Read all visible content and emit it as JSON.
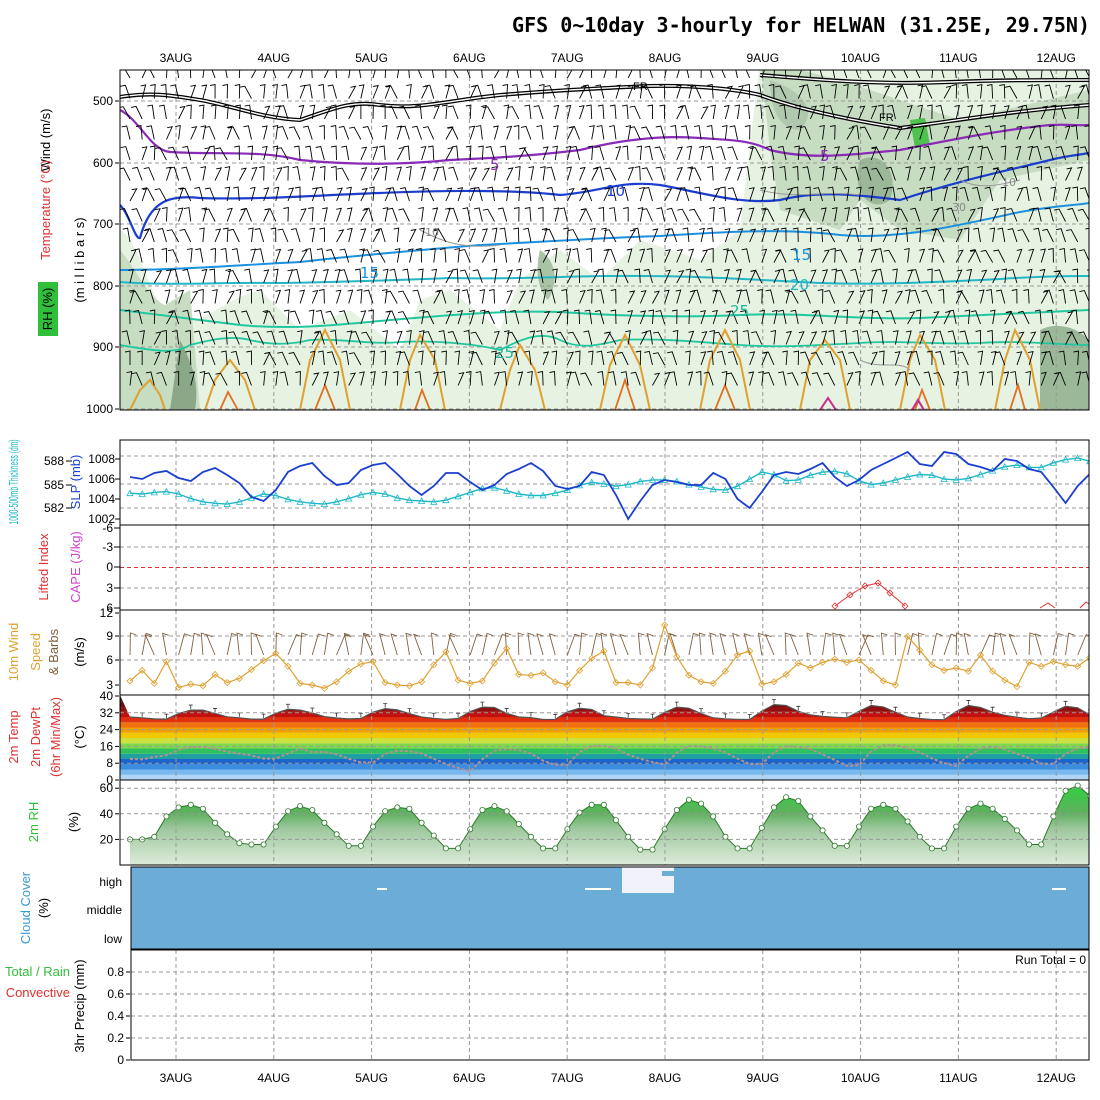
{
  "title": "GFS 0~10day 3-hourly for HELWAN (31.25E, 29.75N)",
  "date_labels": [
    "3AUG",
    "4AUG",
    "5AUG",
    "6AUG",
    "7AUG",
    "8AUG",
    "9AUG",
    "10AUG",
    "11AUG",
    "12AUG"
  ],
  "colors": {
    "rh_green": "#2fbf3a",
    "temp_red": "#e03030",
    "wind_black": "#000000",
    "slp_blue": "#1a3fd0",
    "thk_cyan": "#20b8c8",
    "li_red": "#e03030",
    "cape_magenta": "#cc44cc",
    "wind10_orange": "#e0a030",
    "barb_brown": "#806040",
    "rh2m_green": "#2fbf3a",
    "cloud_blue": "#6badd6",
    "cloud_label": "#3a9ad0",
    "precip_green": "#2fbf3a",
    "precip_red": "#e03030"
  },
  "panels": {
    "upper": {
      "label_wind": "Wind (m/s)",
      "label_temp": "Temperature (°C)",
      "label_rh": "RH (%)",
      "label_mb": "(m i l l i b a r s)",
      "yticks": [
        "500",
        "600",
        "700",
        "800",
        "900",
        "1000"
      ],
      "fr_label": "FR",
      "contour_labels": [
        "5",
        "5",
        "10",
        "15",
        "15",
        "20",
        "25",
        "25",
        "10",
        "30",
        "10"
      ]
    },
    "slp": {
      "label_thk": "1000-500mb Thickness (dm)",
      "label_slp": "SLP (mb)",
      "thk_ticks": [
        "588",
        "585",
        "582"
      ],
      "slp_ticks": [
        "1008",
        "1006",
        "1004",
        "1002"
      ]
    },
    "li": {
      "label_li": "Lifted Index",
      "label_cape": "CAPE (J/kg)",
      "li_ticks": [
        "-6",
        "-3",
        "0",
        "3",
        "6"
      ]
    },
    "wind10": {
      "label_a": "10m Wind",
      "label_b": "Speed",
      "label_c": "& Barbs",
      "unit": "(m/s)",
      "yticks": [
        "12",
        "9",
        "6",
        "3"
      ]
    },
    "temp2m": {
      "label_a": "2m Temp",
      "label_b": "2m DewPt",
      "label_c": "(6hr Min/Max)",
      "unit": "(°C)",
      "yticks": [
        "40",
        "32",
        "24",
        "16",
        "8",
        "0"
      ]
    },
    "rh2m": {
      "label": "2m RH",
      "unit": "(%)",
      "yticks": [
        "60",
        "40",
        "20"
      ]
    },
    "cloud": {
      "label": "Cloud Cover",
      "unit": "(%)",
      "levels": [
        "high",
        "middle",
        "low"
      ]
    },
    "precip": {
      "label_a": "Total / Rain",
      "label_b": "Convective",
      "label_c": "3hr Precip (mm)",
      "run_total": "Run Total = 0",
      "yticks": [
        "0.8",
        "0.6",
        "0.4",
        "0.2",
        "0"
      ]
    }
  },
  "chart_data": {
    "type": "line",
    "x_start": "2 AUG 12Z",
    "x_step_hours": 3,
    "slp_mb": [
      1006.2,
      1006.0,
      1006.6,
      1006.8,
      1006.1,
      1005.8,
      1006.7,
      1007.1,
      1006.4,
      1005.6,
      1004.2,
      1003.8,
      1004.9,
      1006.7,
      1007.3,
      1007.6,
      1006.3,
      1005.4,
      1005.6,
      1006.9,
      1007.4,
      1007.6,
      1006.5,
      1005.3,
      1004.4,
      1005.3,
      1006.6,
      1006.6,
      1005.7,
      1004.9,
      1005.4,
      1006.5,
      1007.0,
      1007.6,
      1006.8,
      1005.3,
      1005.0,
      1005.3,
      1006.7,
      1006.4,
      1004.4,
      1002.0,
      1003.8,
      1005.4,
      1005.9,
      1005.7,
      1005.4,
      1005.4,
      1006.6,
      1006.0,
      1004.0,
      1003.1,
      1004.7,
      1006.4,
      1006.7,
      1006.5,
      1007.0,
      1007.6,
      1006.2,
      1005.3,
      1005.9,
      1006.9,
      1007.5,
      1008.1,
      1008.7,
      1007.5,
      1007.3,
      1008.7,
      1008.5,
      1007.5,
      1007.2,
      1006.8,
      1008.0,
      1007.8,
      1007.0,
      1006.7,
      1005.2,
      1003.6,
      1005.3,
      1006.5,
      1006.0,
      1005.5,
      1006.3
    ],
    "thickness_dm": [
      583.9,
      583.8,
      584.0,
      584.1,
      583.8,
      583.2,
      582.8,
      582.6,
      582.5,
      582.8,
      583.3,
      583.8,
      583.6,
      583.1,
      582.8,
      582.6,
      582.5,
      582.8,
      583.2,
      583.7,
      584.0,
      583.8,
      583.3,
      583.0,
      582.9,
      582.8,
      583.0,
      583.5,
      584.0,
      584.5,
      584.6,
      584.2,
      583.8,
      583.6,
      583.6,
      583.9,
      584.3,
      584.9,
      585.3,
      585.1,
      584.8,
      585.0,
      585.4,
      585.6,
      585.6,
      585.4,
      585.0,
      584.7,
      584.4,
      584.3,
      584.8,
      585.7,
      586.6,
      586.3,
      585.5,
      585.6,
      586.2,
      586.6,
      586.7,
      586.4,
      585.5,
      585.0,
      585.2,
      585.6,
      586.0,
      586.3,
      586.2,
      585.7,
      585.6,
      585.8,
      586.3,
      586.8,
      587.3,
      587.5,
      587.2,
      587.2,
      587.8,
      588.2,
      588.4,
      588.0,
      587.5,
      587.3,
      587.2
    ],
    "wind10m_ms": [
      3.5,
      4.8,
      3.2,
      5.9,
      2.7,
      3.1,
      2.9,
      4.3,
      3.3,
      3.8,
      4.9,
      6.0,
      6.9,
      5.3,
      3.2,
      3.0,
      2.6,
      3.4,
      4.7,
      5.6,
      5.9,
      3.3,
      3.0,
      2.9,
      3.4,
      5.5,
      7.1,
      3.6,
      3.2,
      3.5,
      5.7,
      7.5,
      4.3,
      4.2,
      4.5,
      3.4,
      3.0,
      4.8,
      6.3,
      7.2,
      3.3,
      3.3,
      3.0,
      5.1,
      10.4,
      6.5,
      4.2,
      3.4,
      3.2,
      4.7,
      6.7,
      7.2,
      3.1,
      3.4,
      4.3,
      5.7,
      5.1,
      5.8,
      6.2,
      5.8,
      6.1,
      4.8,
      3.5,
      3.0,
      9.0,
      7.3,
      5.5,
      4.8,
      5.1,
      4.7,
      6.7,
      4.7,
      3.6,
      2.8,
      5.8,
      5.3,
      5.9,
      5.5,
      5.3,
      6.4,
      5.0,
      3.5,
      3.2
    ],
    "temp2m_c": [
      30,
      29.6,
      29.1,
      29,
      31.6,
      33.3,
      33.3,
      31.7,
      30.1,
      29.6,
      29,
      29,
      31.8,
      33.7,
      33.3,
      31.9,
      30.2,
      29.5,
      29.1,
      29.3,
      32.3,
      34,
      33.4,
      31.6,
      30,
      29.4,
      28.9,
      29.3,
      32.6,
      34.7,
      34.5,
      31.7,
      30,
      29.7,
      28.8,
      28.9,
      32.5,
      34.2,
      33.6,
      30.6,
      30,
      29.3,
      29.1,
      29,
      32.2,
      34.7,
      34.2,
      31.6,
      29.6,
      29.1,
      28.9,
      28.8,
      32.8,
      35.9,
      35.5,
      32.7,
      31,
      30.3,
      29.9,
      29.6,
      32.7,
      35.5,
      34.8,
      32.3,
      30,
      29.3,
      28.8,
      28.7,
      32.6,
      35.5,
      34.5,
      32.3,
      30.8,
      29.9,
      29.2,
      29.5,
      32.4,
      35.1,
      34.4,
      31,
      30.3,
      27.6,
      27.8
    ],
    "dewpt2m_c": [
      10,
      9.8,
      11,
      11.8,
      14.4,
      15.7,
      15.7,
      14.8,
      13.5,
      12.6,
      11.7,
      10.2,
      10.2,
      12.6,
      14.9,
      13.3,
      13.4,
      12.3,
      10.1,
      8.4,
      8.3,
      12.5,
      13.9,
      13.7,
      12.6,
      10.1,
      7.6,
      5.7,
      4.2,
      9.9,
      14,
      14.6,
      14.3,
      12.6,
      9.2,
      7.2,
      7.2,
      13.4,
      16.2,
      16.3,
      14.9,
      12.1,
      10.1,
      8.5,
      7.4,
      13,
      16.2,
      16,
      15,
      13.2,
      10.2,
      7.6,
      7.6,
      13.2,
      16.1,
      15.8,
      14.8,
      12.2,
      9.5,
      6.7,
      7,
      13.6,
      16.5,
      16.6,
      15.2,
      13.2,
      10.3,
      8.1,
      6.7,
      11.6,
      14.9,
      15.8,
      14.5,
      12.6,
      10.4,
      7.8,
      7.6,
      12.6,
      15,
      15.6,
      15.4,
      12,
      8.9
    ],
    "rh2m_pct": [
      20,
      20,
      22,
      38,
      45,
      47,
      44,
      33,
      24,
      17,
      16,
      16,
      30,
      42,
      46,
      43,
      33,
      24,
      15,
      15,
      30,
      42,
      45,
      44,
      33,
      23,
      13,
      13,
      28,
      43,
      46,
      42,
      32,
      22,
      13,
      13,
      28,
      41,
      47,
      47,
      35,
      22,
      12,
      12,
      28,
      43,
      51,
      48,
      38,
      22,
      13,
      13,
      29,
      45,
      53,
      50,
      38,
      27,
      15,
      15,
      30,
      44,
      47,
      44,
      34,
      22,
      13,
      13,
      30,
      44,
      48,
      44,
      36,
      27,
      16,
      16,
      38,
      58,
      62,
      54,
      42,
      28,
      22
    ],
    "precip_mm": [],
    "run_total": "Run Total = 0"
  }
}
